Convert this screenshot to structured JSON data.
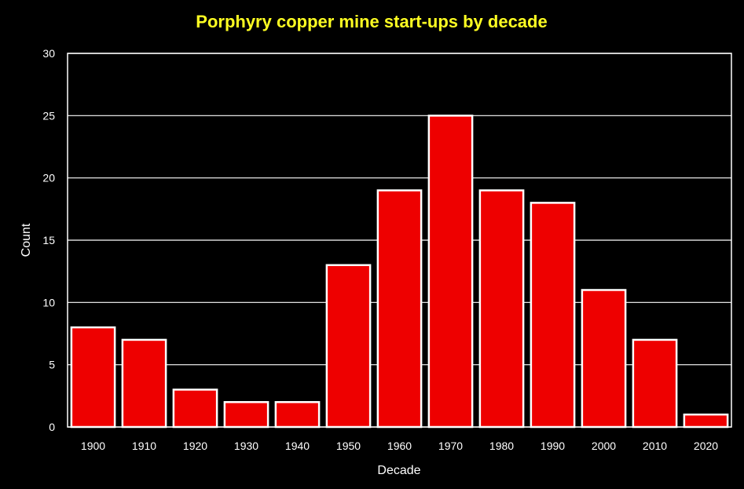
{
  "chart_data": {
    "type": "bar",
    "title": "Porphyry copper mine start-ups by decade",
    "xlabel": "Decade",
    "ylabel": "Count",
    "categories": [
      "1900",
      "1910",
      "1920",
      "1930",
      "1940",
      "1950",
      "1960",
      "1970",
      "1980",
      "1990",
      "2000",
      "2010",
      "2020"
    ],
    "values": [
      8,
      7,
      3,
      2,
      2,
      13,
      19,
      25,
      19,
      18,
      11,
      7,
      1
    ],
    "ylim": [
      0,
      30
    ],
    "yticks": [
      "0",
      "5",
      "10",
      "15",
      "20",
      "25",
      "30"
    ],
    "grid": true,
    "legend": "none",
    "colors": {
      "background": "#000000",
      "bar_fill": "#ee0000",
      "bar_edge": "#ffffff",
      "title": "#ffff22",
      "text": "#ffffff",
      "grid": "#ffffff"
    }
  }
}
